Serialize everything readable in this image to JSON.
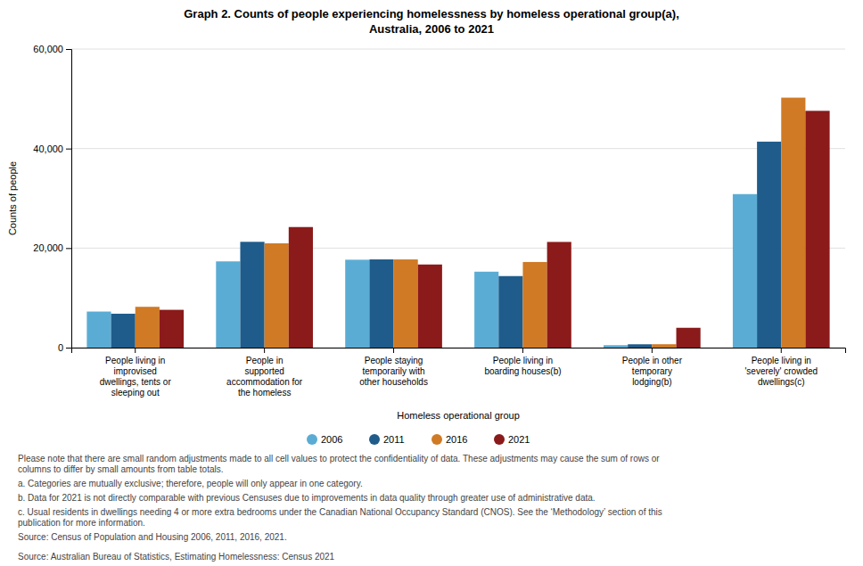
{
  "chart_data": {
    "type": "bar",
    "title": "Graph 2. Counts of people experiencing homelessness by homeless operational group(a),\nAustralia, 2006 to 2021",
    "xlabel": "Homeless operational group",
    "ylabel": "Counts of people",
    "categories": [
      "People living in\nimprovised\ndwellings, tents or\nsleeping out",
      "People in\nsupported\naccommodation for\nthe homeless",
      "People staying\ntemporarily with\nother households",
      "People living in\nboarding houses(b)",
      "People in other\ntemporary\nlodging(b)",
      "People living in\n'severely' crowded\ndwellings(c)"
    ],
    "series": [
      {
        "name": "2006",
        "color": "#5BACD4",
        "values": [
          7247,
          17329,
          17663,
          15258,
          488,
          30846
        ]
      },
      {
        "name": "2011",
        "color": "#1F5C8B",
        "values": [
          6813,
          21258,
          17724,
          14374,
          669,
          41390
        ]
      },
      {
        "name": "2016",
        "color": "#D07A25",
        "values": [
          8200,
          20956,
          17720,
          17203,
          680,
          50228
        ]
      },
      {
        "name": "2021",
        "color": "#8B1A1A",
        "values": [
          7595,
          24229,
          16702,
          21237,
          3985,
          47581
        ]
      }
    ],
    "ylim": [
      0,
      60000
    ],
    "yticks": [
      0,
      {
        "value": 20000,
        "label": "20,000"
      },
      {
        "value": 40000,
        "label": "40,000"
      },
      {
        "value": 60000,
        "label": "60,000"
      }
    ],
    "grid": true,
    "legend": "bottom",
    "annotations": [
      "Please note that there are small random adjustments made to all cell values to protect the confidentiality of data. These adjustments may cause the sum of rows or\ncolumns to differ by small amounts from table totals.",
      "a. Categories are mutually exclusive; therefore, people will only appear in one category.",
      "b. Data for 2021 is not directly comparable with previous Censuses due to improvements in data quality through greater use of administrative data.",
      "c. Usual residents in dwellings needing 4 or more extra bedrooms under the Canadian National Occupancy Standard (CNOS). See the ‘Methodology’ section of this\npublication for more information.",
      "Source: Census of Population and Housing 2006, 2011, 2016, 2021.",
      "Source: Australian Bureau of Statistics, Estimating Homelessness: Census 2021"
    ]
  }
}
